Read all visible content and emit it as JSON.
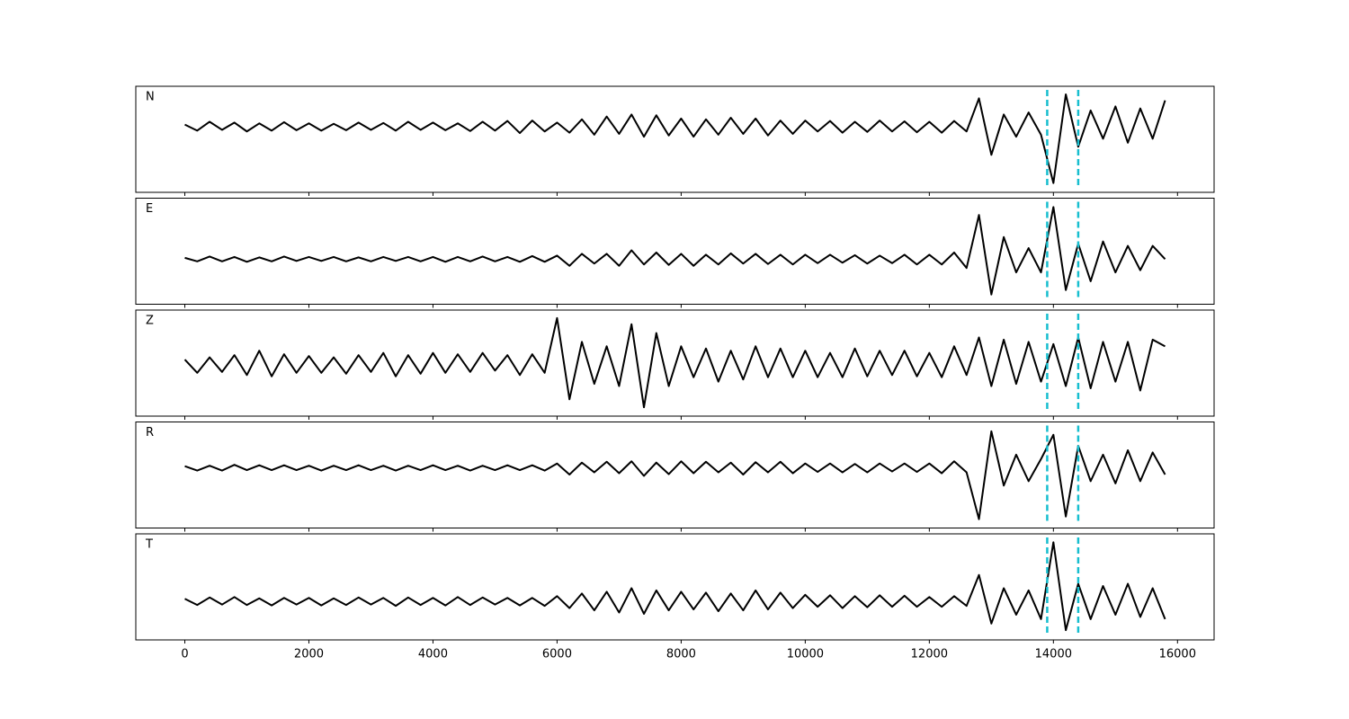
{
  "chart_data": [
    {
      "type": "line",
      "label": "N",
      "color": "#000000",
      "xlim": [
        -790,
        16590
      ],
      "ylim": [
        -1.63,
        1.0
      ],
      "vlines": [
        13900,
        14400
      ],
      "vline_color": "#17becf",
      "x": [
        0,
        200,
        400,
        600,
        800,
        1000,
        1200,
        1400,
        1600,
        1800,
        2000,
        2200,
        2400,
        2600,
        2800,
        3000,
        3200,
        3400,
        3600,
        3800,
        4000,
        4200,
        4400,
        4600,
        4800,
        5000,
        5200,
        5400,
        5600,
        5800,
        6000,
        6200,
        6400,
        6600,
        6800,
        7000,
        7200,
        7400,
        7600,
        7800,
        8000,
        8200,
        8400,
        8600,
        8800,
        9000,
        9200,
        9400,
        9600,
        9800,
        10000,
        10200,
        10400,
        10600,
        10800,
        11000,
        11200,
        11400,
        11600,
        11800,
        12000,
        12200,
        12400,
        12600,
        12800,
        13000,
        13200,
        13400,
        13600,
        13800,
        14000,
        14200,
        14400,
        14600,
        14800,
        15000,
        15200,
        15400,
        15600,
        15800
      ],
      "values": [
        0.05,
        -0.1,
        0.12,
        -0.08,
        0.1,
        -0.12,
        0.08,
        -0.1,
        0.11,
        -0.09,
        0.08,
        -0.1,
        0.07,
        -0.09,
        0.1,
        -0.08,
        0.09,
        -0.1,
        0.12,
        -0.08,
        0.1,
        -0.09,
        0.08,
        -0.11,
        0.12,
        -0.1,
        0.14,
        -0.16,
        0.15,
        -0.12,
        0.1,
        -0.15,
        0.18,
        -0.2,
        0.25,
        -0.18,
        0.3,
        -0.25,
        0.28,
        -0.22,
        0.2,
        -0.25,
        0.18,
        -0.2,
        0.22,
        -0.18,
        0.2,
        -0.22,
        0.15,
        -0.18,
        0.15,
        -0.12,
        0.14,
        -0.15,
        0.12,
        -0.13,
        0.15,
        -0.12,
        0.13,
        -0.14,
        0.12,
        -0.15,
        0.14,
        -0.12,
        0.7,
        -0.7,
        0.3,
        -0.25,
        0.35,
        -0.2,
        -1.4,
        0.8,
        -0.5,
        0.4,
        -0.3,
        0.5,
        -0.4,
        0.45,
        -0.3,
        0.65
      ]
    },
    {
      "type": "line",
      "label": "E",
      "color": "#000000",
      "xlim": [
        -790,
        16590
      ],
      "ylim": [
        -1.02,
        1.38
      ],
      "vlines": [
        13900,
        14400
      ],
      "vline_color": "#17becf",
      "x": [
        0,
        200,
        400,
        600,
        800,
        1000,
        1200,
        1400,
        1600,
        1800,
        2000,
        2200,
        2400,
        2600,
        2800,
        3000,
        3200,
        3400,
        3600,
        3800,
        4000,
        4200,
        4400,
        4600,
        4800,
        5000,
        5200,
        5400,
        5600,
        5800,
        6000,
        6200,
        6400,
        6600,
        6800,
        7000,
        7200,
        7400,
        7600,
        7800,
        8000,
        8200,
        8400,
        8600,
        8800,
        9000,
        9200,
        9400,
        9600,
        9800,
        10000,
        10200,
        10400,
        10600,
        10800,
        11000,
        11200,
        11400,
        11600,
        11800,
        12000,
        12200,
        12400,
        12600,
        12800,
        13000,
        13200,
        13400,
        13600,
        13800,
        14000,
        14200,
        14400,
        14600,
        14800,
        15000,
        15200,
        15400,
        15600,
        15800
      ],
      "values": [
        0.03,
        -0.05,
        0.06,
        -0.05,
        0.05,
        -0.06,
        0.04,
        -0.05,
        0.06,
        -0.04,
        0.05,
        -0.04,
        0.05,
        -0.05,
        0.04,
        -0.05,
        0.05,
        -0.04,
        0.05,
        -0.05,
        0.05,
        -0.06,
        0.05,
        -0.05,
        0.06,
        -0.05,
        0.05,
        -0.06,
        0.07,
        -0.06,
        0.08,
        -0.15,
        0.12,
        -0.1,
        0.12,
        -0.15,
        0.2,
        -0.12,
        0.15,
        -0.13,
        0.12,
        -0.15,
        0.1,
        -0.12,
        0.13,
        -0.1,
        0.12,
        -0.11,
        0.1,
        -0.12,
        0.1,
        -0.09,
        0.1,
        -0.08,
        0.09,
        -0.1,
        0.08,
        -0.09,
        0.1,
        -0.12,
        0.1,
        -0.12,
        0.15,
        -0.2,
        1.0,
        -0.8,
        0.5,
        -0.3,
        0.25,
        -0.3,
        1.18,
        -0.7,
        0.35,
        -0.5,
        0.4,
        -0.3,
        0.3,
        -0.25,
        0.3,
        0.0
      ]
    },
    {
      "type": "line",
      "label": "Z",
      "color": "#000000",
      "xlim": [
        -790,
        16590
      ],
      "ylim": [
        -1.18,
        1.22
      ],
      "vlines": [
        13900,
        14400
      ],
      "vline_color": "#17becf",
      "x": [
        0,
        200,
        400,
        600,
        800,
        1000,
        1200,
        1400,
        1600,
        1800,
        2000,
        2200,
        2400,
        2600,
        2800,
        3000,
        3200,
        3400,
        3600,
        3800,
        4000,
        4200,
        4400,
        4600,
        4800,
        5000,
        5200,
        5400,
        5600,
        5800,
        6000,
        6200,
        6400,
        6600,
        6800,
        7000,
        7200,
        7400,
        7600,
        7800,
        8000,
        8200,
        8400,
        8600,
        8800,
        9000,
        9200,
        9400,
        9600,
        9800,
        10000,
        10200,
        10400,
        10600,
        10800,
        11000,
        11200,
        11400,
        11600,
        11800,
        12000,
        12200,
        12400,
        12600,
        12800,
        13000,
        13200,
        13400,
        13600,
        13800,
        14000,
        14200,
        14400,
        14600,
        14800,
        15000,
        15200,
        15400,
        15600,
        15800
      ],
      "values": [
        0.1,
        -0.2,
        0.15,
        -0.18,
        0.2,
        -0.25,
        0.3,
        -0.28,
        0.22,
        -0.2,
        0.18,
        -0.2,
        0.15,
        -0.22,
        0.2,
        -0.18,
        0.25,
        -0.28,
        0.2,
        -0.22,
        0.25,
        -0.2,
        0.22,
        -0.18,
        0.25,
        -0.15,
        0.2,
        -0.25,
        0.22,
        -0.2,
        1.04,
        -0.8,
        0.5,
        -0.45,
        0.4,
        -0.5,
        0.9,
        -0.98,
        0.7,
        -0.5,
        0.4,
        -0.3,
        0.35,
        -0.4,
        0.3,
        -0.35,
        0.4,
        -0.3,
        0.35,
        -0.3,
        0.3,
        -0.3,
        0.25,
        -0.3,
        0.35,
        -0.28,
        0.3,
        -0.25,
        0.3,
        -0.28,
        0.25,
        -0.3,
        0.4,
        -0.25,
        0.6,
        -0.5,
        0.55,
        -0.45,
        0.5,
        -0.4,
        0.45,
        -0.5,
        0.6,
        -0.55,
        0.5,
        -0.4,
        0.5,
        -0.6,
        0.55,
        0.4
      ]
    },
    {
      "type": "line",
      "label": "R",
      "color": "#000000",
      "xlim": [
        -790,
        16590
      ],
      "ylim": [
        -1.36,
        1.04
      ],
      "vlines": [
        13900,
        14400
      ],
      "vline_color": "#17becf",
      "x": [
        0,
        200,
        400,
        600,
        800,
        1000,
        1200,
        1400,
        1600,
        1800,
        2000,
        2200,
        2400,
        2600,
        2800,
        3000,
        3200,
        3400,
        3600,
        3800,
        4000,
        4200,
        4400,
        4600,
        4800,
        5000,
        5200,
        5400,
        5600,
        5800,
        6000,
        6200,
        6400,
        6600,
        6800,
        7000,
        7200,
        7400,
        7600,
        7800,
        8000,
        8200,
        8400,
        8600,
        8800,
        9000,
        9200,
        9400,
        9600,
        9800,
        10000,
        10200,
        10400,
        10600,
        10800,
        11000,
        11200,
        11400,
        11600,
        11800,
        12000,
        12200,
        12400,
        12600,
        12800,
        13000,
        13200,
        13400,
        13600,
        13800,
        14000,
        14200,
        14400,
        14600,
        14800,
        15000,
        15200,
        15400,
        15600,
        15800
      ],
      "values": [
        0.04,
        -0.06,
        0.05,
        -0.06,
        0.07,
        -0.05,
        0.06,
        -0.05,
        0.06,
        -0.05,
        0.05,
        -0.06,
        0.05,
        -0.05,
        0.06,
        -0.05,
        0.05,
        -0.06,
        0.05,
        -0.05,
        0.06,
        -0.05,
        0.05,
        -0.06,
        0.05,
        -0.05,
        0.06,
        -0.05,
        0.06,
        -0.06,
        0.1,
        -0.15,
        0.12,
        -0.1,
        0.14,
        -0.12,
        0.15,
        -0.18,
        0.12,
        -0.14,
        0.15,
        -0.12,
        0.14,
        -0.1,
        0.12,
        -0.15,
        0.13,
        -0.1,
        0.14,
        -0.12,
        0.1,
        -0.09,
        0.1,
        -0.1,
        0.09,
        -0.1,
        0.1,
        -0.08,
        0.1,
        -0.09,
        0.1,
        -0.12,
        0.15,
        -0.1,
        -1.16,
        0.83,
        -0.4,
        0.3,
        -0.3,
        0.2,
        0.75,
        -1.1,
        0.5,
        -0.3,
        0.3,
        -0.35,
        0.4,
        -0.3,
        0.35,
        -0.15
      ]
    },
    {
      "type": "line",
      "label": "T",
      "color": "#000000",
      "xlim": [
        -790,
        16590
      ],
      "ylim": [
        -0.87,
        1.53
      ],
      "vlines": [
        13900,
        14400
      ],
      "vline_color": "#17becf",
      "xticks": [
        0,
        2000,
        4000,
        6000,
        8000,
        10000,
        12000,
        14000,
        16000
      ],
      "x": [
        0,
        200,
        400,
        600,
        800,
        1000,
        1200,
        1400,
        1600,
        1800,
        2000,
        2200,
        2400,
        2600,
        2800,
        3000,
        3200,
        3400,
        3600,
        3800,
        4000,
        4200,
        4400,
        4600,
        4800,
        5000,
        5200,
        5400,
        5600,
        5800,
        6000,
        6200,
        6400,
        6600,
        6800,
        7000,
        7200,
        7400,
        7600,
        7800,
        8000,
        8200,
        8400,
        8600,
        8800,
        9000,
        9200,
        9400,
        9600,
        9800,
        10000,
        10200,
        10400,
        10600,
        10800,
        11000,
        11200,
        11400,
        11600,
        11800,
        12000,
        12200,
        12400,
        12600,
        12800,
        13000,
        13200,
        13400,
        13600,
        13800,
        14000,
        14200,
        14400,
        14600,
        14800,
        15000,
        15200,
        15400,
        15600,
        15800
      ],
      "values": [
        0.06,
        -0.08,
        0.09,
        -0.07,
        0.1,
        -0.08,
        0.07,
        -0.09,
        0.08,
        -0.07,
        0.08,
        -0.09,
        0.07,
        -0.08,
        0.09,
        -0.07,
        0.08,
        -0.1,
        0.09,
        -0.08,
        0.08,
        -0.09,
        0.1,
        -0.08,
        0.09,
        -0.07,
        0.08,
        -0.09,
        0.08,
        -0.1,
        0.12,
        -0.15,
        0.18,
        -0.2,
        0.22,
        -0.25,
        0.3,
        -0.28,
        0.25,
        -0.2,
        0.22,
        -0.18,
        0.2,
        -0.22,
        0.18,
        -0.2,
        0.25,
        -0.18,
        0.2,
        -0.15,
        0.15,
        -0.12,
        0.14,
        -0.15,
        0.12,
        -0.13,
        0.14,
        -0.12,
        0.13,
        -0.12,
        0.1,
        -0.12,
        0.12,
        -0.1,
        0.6,
        -0.5,
        0.3,
        -0.3,
        0.25,
        -0.4,
        1.34,
        -0.65,
        0.4,
        -0.4,
        0.35,
        -0.3,
        0.4,
        -0.35,
        0.3,
        -0.4
      ]
    }
  ]
}
